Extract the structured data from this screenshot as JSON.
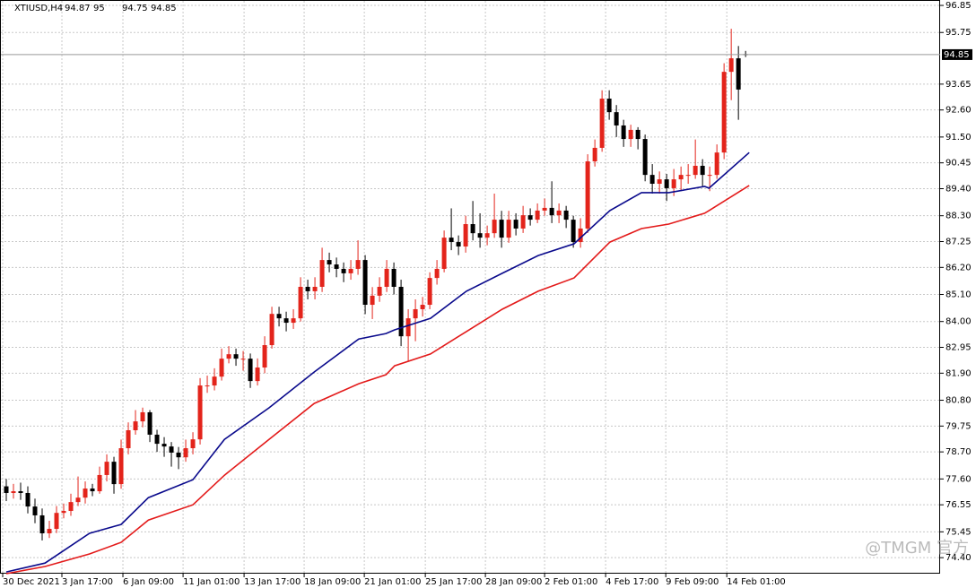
{
  "chart_data": {
    "type": "candlestick",
    "symbol": "XTIUSD,H4",
    "watermark": "@TMGM 官方",
    "bull_color": "#e3241b",
    "bear_color": "#000000",
    "grid": true,
    "xlim": [
      -0.5,
      130.1
    ],
    "ylim": [
      73.75,
      97.07
    ],
    "xticks": [
      {
        "value": -0.5,
        "label": "30 Dec 2021"
      },
      {
        "value": 7.75,
        "label": "3 Jan 17:00"
      },
      {
        "value": 16.25,
        "label": "6 Jan 09:00"
      },
      {
        "value": 24.63,
        "label": "11 Jan 01:00"
      },
      {
        "value": 33.13,
        "label": "13 Jan 17:00"
      },
      {
        "value": 41.5,
        "label": "18 Jan 09:00"
      },
      {
        "value": 49.88,
        "label": "21 Jan 01:00"
      },
      {
        "value": 58.38,
        "label": "25 Jan 17:00"
      },
      {
        "value": 66.75,
        "label": "28 Jan 09:00"
      },
      {
        "value": 75,
        "label": "2 Feb 01:00"
      },
      {
        "value": 83.5,
        "label": "4 Feb 17:00"
      },
      {
        "value": 91.88,
        "label": "9 Feb 09:00"
      },
      {
        "value": 100.38,
        "label": "14 Feb 01:00"
      }
    ],
    "yticks": [
      96.85,
      95.75,
      93.65,
      {
        "value": 92.6,
        "label": "92.60"
      },
      {
        "value": 91.5,
        "label": "91.50"
      },
      90.45,
      {
        "value": 89.4,
        "label": "89.40"
      },
      {
        "value": 88.3,
        "label": "88.30"
      },
      87.25,
      {
        "value": 86.2,
        "label": "86.20"
      },
      {
        "value": 85.1,
        "label": "85.10"
      },
      {
        "value": 84,
        "label": "84.00"
      },
      82.95,
      {
        "value": 81.9,
        "label": "81.90"
      },
      {
        "value": 80.8,
        "label": "80.80"
      },
      79.75,
      {
        "value": 78.7,
        "label": "78.70"
      },
      {
        "value": 77.6,
        "label": "77.60"
      },
      76.55,
      75.45,
      {
        "value": 74.4,
        "label": "74.40"
      }
    ],
    "open": [
      77.3,
      77.03,
      77.1,
      77.03,
      76.48,
      76.12,
      75.39,
      75.57,
      76.22,
      76.3,
      76.66,
      76.84,
      77.21,
      77.1,
      77.76,
      78.3,
      77.39,
      78.85,
      79.58,
      79.94,
      80.31,
      79.4,
      79.03,
      78.92,
      78.67,
      78.48,
      78.85,
      79.21,
      81.4,
      81.4,
      81.76,
      82.49,
      82.67,
      82.49,
      82.49,
      81.58,
      82.13,
      83.04,
      84.31,
      84.13,
      83.95,
      84.13,
      85.41,
      85.23,
      85.41,
      86.5,
      86.32,
      86.14,
      85.96,
      86.14,
      86.5,
      84.68,
      85.05,
      85.41,
      86.14,
      85.41,
      83.4,
      84.13,
      84.5,
      84.68,
      85.77,
      86.14,
      87.41,
      87.23,
      87.05,
      87.96,
      87.59,
      87.41,
      87.59,
      88.14,
      87.41,
      88.14,
      87.78,
      88.32,
      88.14,
      88.51,
      88.62,
      88.32,
      88.51,
      88.14,
      87.23,
      87.78,
      90.51,
      91.06,
      93.06,
      92.51,
      91.97,
      91.42,
      91.79,
      91.42,
      89.96,
      89.6,
      89.78,
      89.42,
      89.78,
      89.96,
      89.96,
      90.33,
      89.96,
      89.96,
      90.87,
      94.15,
      94.7,
      94.87
    ],
    "high": [
      77.6,
      77.4,
      77.45,
      77.3,
      76.8,
      76.4,
      75.9,
      76.5,
      76.6,
      77.0,
      77.7,
      77.5,
      77.4,
      78.1,
      78.6,
      78.5,
      79.2,
      79.9,
      80.4,
      80.5,
      80.4,
      79.6,
      79.3,
      79.1,
      78.9,
      79.2,
      79.5,
      81.7,
      81.8,
      82.1,
      82.9,
      83.0,
      82.9,
      82.8,
      82.7,
      82.5,
      83.4,
      84.6,
      84.6,
      84.4,
      84.5,
      85.8,
      85.7,
      85.8,
      87.0,
      86.8,
      86.6,
      86.4,
      86.5,
      87.3,
      86.7,
      85.4,
      85.8,
      86.5,
      86.4,
      85.7,
      84.5,
      84.9,
      85.0,
      86.0,
      86.5,
      87.7,
      88.6,
      87.5,
      88.3,
      88.9,
      88.4,
      87.9,
      89.2,
      88.5,
      88.5,
      88.4,
      88.7,
      88.6,
      88.8,
      89.0,
      89.7,
      88.8,
      88.7,
      88.3,
      88.2,
      90.8,
      91.4,
      93.4,
      93.4,
      92.8,
      92.2,
      92.0,
      91.9,
      91.6,
      90.4,
      90.1,
      90.0,
      90.2,
      90.3,
      90.4,
      91.4,
      90.6,
      90.3,
      91.2,
      94.5,
      95.9,
      95.2,
      95.0
    ],
    "low": [
      76.7,
      76.8,
      76.75,
      76.2,
      75.8,
      75.1,
      75.2,
      75.4,
      76.0,
      76.1,
      76.5,
      76.6,
      76.9,
      77.0,
      77.5,
      77.0,
      77.2,
      78.6,
      79.4,
      79.7,
      79.1,
      78.7,
      78.5,
      78.1,
      78.0,
      78.3,
      78.6,
      79.0,
      81.1,
      81.2,
      81.6,
      82.3,
      82.2,
      82.0,
      81.3,
      81.4,
      81.9,
      82.9,
      83.8,
      83.6,
      83.7,
      84.0,
      84.9,
      84.9,
      85.2,
      86.0,
      85.8,
      85.6,
      85.7,
      85.9,
      84.3,
      84.1,
      84.8,
      85.2,
      85.1,
      83.0,
      82.4,
      83.2,
      84.2,
      84.5,
      85.5,
      86.0,
      86.9,
      86.7,
      86.8,
      87.3,
      87.0,
      87.1,
      87.4,
      87.0,
      87.2,
      87.5,
      87.6,
      87.9,
      88.0,
      88.3,
      88.0,
      88.0,
      87.8,
      87.0,
      87.0,
      87.6,
      90.3,
      90.9,
      92.2,
      91.5,
      91.1,
      91.1,
      91.0,
      89.7,
      89.2,
      89.2,
      88.9,
      89.1,
      89.3,
      89.6,
      89.8,
      89.5,
      89.3,
      89.8,
      90.6,
      93.0,
      92.2,
      94.75
    ],
    "close": [
      77.03,
      77.1,
      77.03,
      76.48,
      76.12,
      75.39,
      75.57,
      76.22,
      76.3,
      76.66,
      76.84,
      77.21,
      77.1,
      77.76,
      78.3,
      77.39,
      78.85,
      79.58,
      79.94,
      80.31,
      79.4,
      79.03,
      78.92,
      78.67,
      78.48,
      78.85,
      79.21,
      81.4,
      81.4,
      81.76,
      82.49,
      82.67,
      82.49,
      82.49,
      81.58,
      82.13,
      83.04,
      84.31,
      84.13,
      83.95,
      84.13,
      85.41,
      85.23,
      85.41,
      86.5,
      86.32,
      86.14,
      85.96,
      86.14,
      86.5,
      84.68,
      85.05,
      85.41,
      86.14,
      85.41,
      83.4,
      84.13,
      84.5,
      84.68,
      85.77,
      86.14,
      87.41,
      87.23,
      87.05,
      87.96,
      87.59,
      87.41,
      87.59,
      88.14,
      87.41,
      88.14,
      87.78,
      88.32,
      88.14,
      88.51,
      88.62,
      88.32,
      88.51,
      88.14,
      87.23,
      87.78,
      90.51,
      91.06,
      93.06,
      92.51,
      91.97,
      91.42,
      91.79,
      91.42,
      89.96,
      89.6,
      89.78,
      89.42,
      89.78,
      89.96,
      89.96,
      90.33,
      89.96,
      89.96,
      90.87,
      94.15,
      94.7,
      93.43,
      94.85
    ],
    "lines": [
      {
        "color": "#0a0a8c",
        "x": [
          0,
          5.4,
          11.6,
          16,
          19.8,
          26,
          30.4,
          36.6,
          42.9,
          49.1,
          52.9,
          54.1,
          59.1,
          64.1,
          69.1,
          74.1,
          79.1,
          84.1,
          88.5,
          92.3,
          97.3,
          97.9,
          103.5
        ],
        "values": [
          73.82,
          74.18,
          75.39,
          75.75,
          76.84,
          77.57,
          79.21,
          80.49,
          81.95,
          83.29,
          83.51,
          83.66,
          84.13,
          85.23,
          85.96,
          86.68,
          87.16,
          88.51,
          89.24,
          89.24,
          89.49,
          89.42,
          90.87
        ]
      },
      {
        "color": "#e31a1a",
        "x": [
          0,
          5.4,
          11.6,
          16,
          19.8,
          26,
          30.4,
          36.6,
          42.9,
          49.1,
          52.9,
          54.1,
          59.1,
          64.1,
          69.1,
          74.1,
          79.1,
          84.1,
          88.5,
          92.3,
          97.3,
          97.9,
          103.5
        ],
        "values": [
          73.75,
          74.04,
          74.55,
          75.02,
          75.93,
          76.55,
          77.75,
          79.21,
          80.67,
          81.47,
          81.84,
          82.2,
          82.68,
          83.59,
          84.5,
          85.23,
          85.77,
          87.23,
          87.78,
          87.96,
          88.4,
          88.51,
          89.53
        ]
      }
    ]
  }
}
